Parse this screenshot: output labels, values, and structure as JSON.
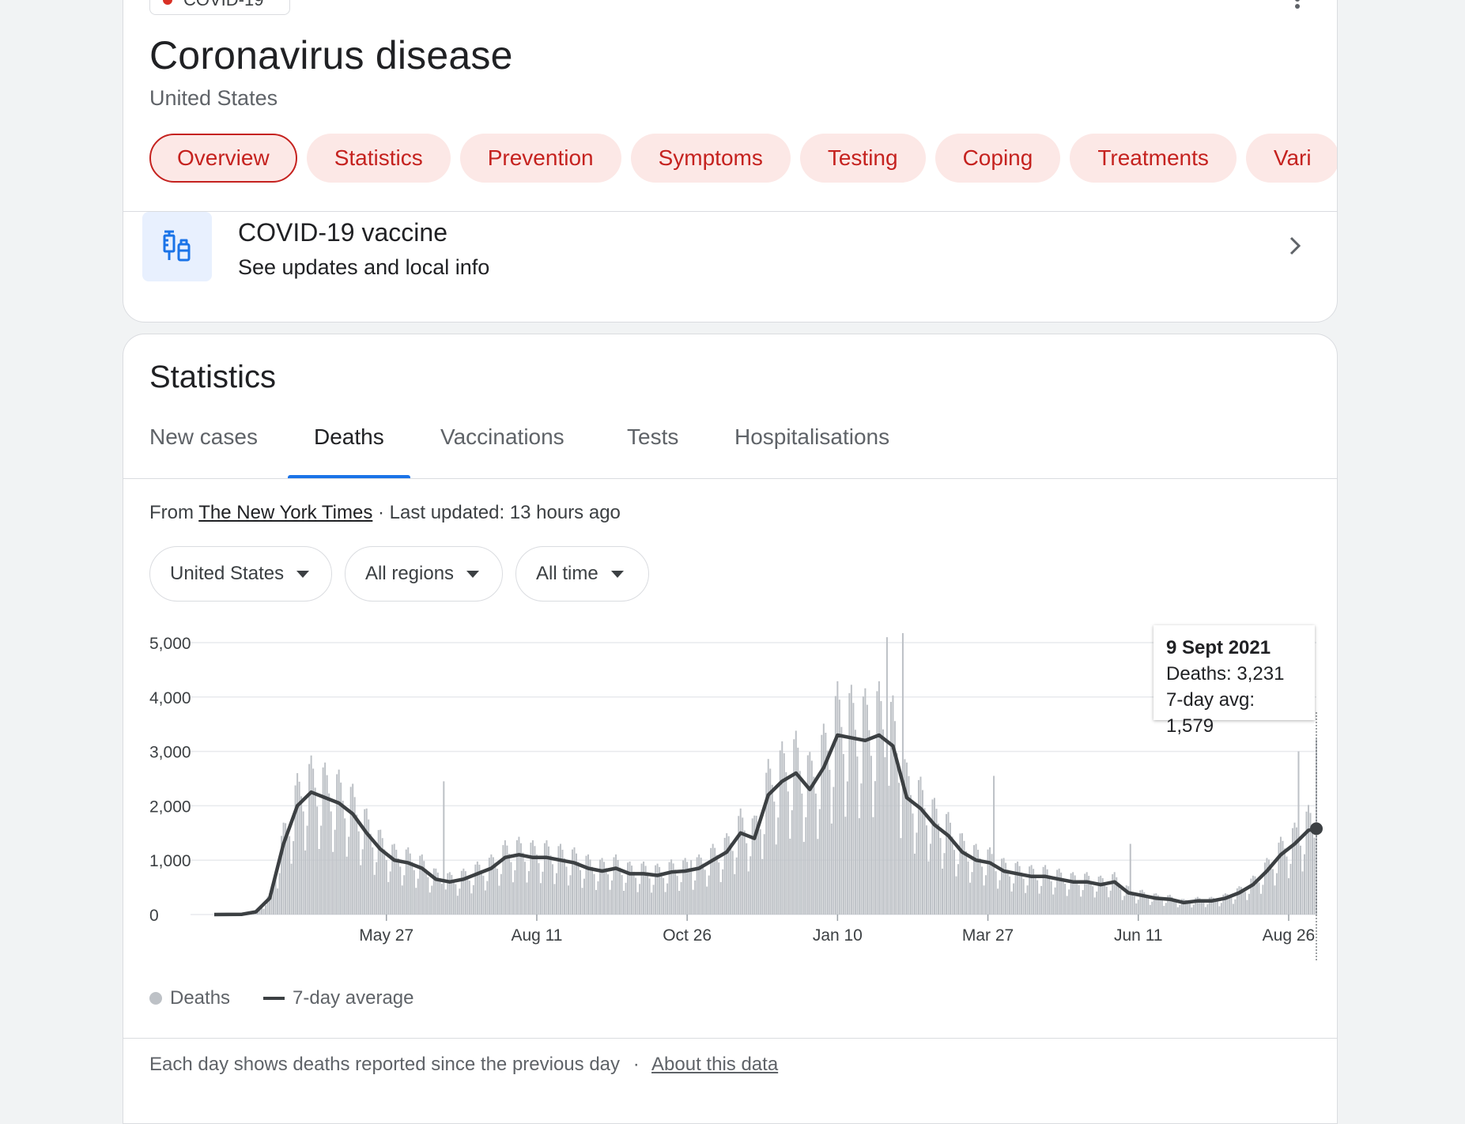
{
  "topic_chip": {
    "label": "COVID-19",
    "icon": "virus-icon"
  },
  "header": {
    "title": "Coronavirus disease",
    "subtitle": "United States"
  },
  "topic_tabs": [
    {
      "label": "Overview",
      "active": true
    },
    {
      "label": "Statistics"
    },
    {
      "label": "Prevention"
    },
    {
      "label": "Symptoms"
    },
    {
      "label": "Testing"
    },
    {
      "label": "Coping"
    },
    {
      "label": "Treatments"
    },
    {
      "label": "Vari"
    }
  ],
  "vaccine": {
    "title": "COVID-19 vaccine",
    "subtitle": "See updates and local info",
    "icon": "syringe-vial-icon"
  },
  "statistics": {
    "title": "Statistics",
    "tabs": [
      {
        "label": "New cases"
      },
      {
        "label": "Deaths",
        "active": true
      },
      {
        "label": "Vaccinations"
      },
      {
        "label": "Tests"
      },
      {
        "label": "Hospitalisations"
      }
    ],
    "source_prefix": "From",
    "source_link": "The New York Times",
    "source_suffix": "· Last updated: 13 hours ago",
    "filters": {
      "country": "United States",
      "regions": "All regions",
      "time": "All time"
    },
    "tooltip": {
      "date": "9 Sept 2021",
      "deaths": "Deaths: 3,231",
      "avg": "7-day avg: 1,579"
    },
    "legend": {
      "bars": "Deaths",
      "line": "7-day average"
    },
    "footer_text": "Each day shows deaths reported since the previous day",
    "footer_sep": "·",
    "footer_link": "About this data"
  },
  "colors": {
    "accent_red": "#c5221f",
    "pill_bg": "#fce8e6",
    "tab_blue": "#1a73e8",
    "bar_grey": "#bdc1c6",
    "line_dark": "#3c4043"
  },
  "chart_data": {
    "type": "bar",
    "title": "",
    "x_range": [
      "2020-03-01",
      "2021-09-09"
    ],
    "y_range": [
      0,
      5000
    ],
    "y_ticks": [
      0,
      1000,
      2000,
      3000,
      4000,
      5000
    ],
    "y_tick_labels": [
      "0",
      "1,000",
      "2,000",
      "3,000",
      "4,000",
      "5,000"
    ],
    "x_tick_dates": [
      "2020-05-27",
      "2020-08-11",
      "2020-10-26",
      "2021-01-10",
      "2021-03-27",
      "2021-06-11",
      "2021-08-26"
    ],
    "x_tick_labels": [
      "May 27",
      "Aug 11",
      "Oct 26",
      "Jan 10",
      "Mar 27",
      "Jun 11",
      "Aug 26"
    ],
    "grid": true,
    "series": [
      {
        "name": "7-day average",
        "kind": "line",
        "points": [
          [
            "2020-03-01",
            0
          ],
          [
            "2020-03-15",
            5
          ],
          [
            "2020-03-22",
            50
          ],
          [
            "2020-03-29",
            300
          ],
          [
            "2020-04-05",
            1300
          ],
          [
            "2020-04-12",
            2000
          ],
          [
            "2020-04-19",
            2250
          ],
          [
            "2020-04-26",
            2150
          ],
          [
            "2020-05-03",
            2050
          ],
          [
            "2020-05-10",
            1850
          ],
          [
            "2020-05-17",
            1500
          ],
          [
            "2020-05-24",
            1200
          ],
          [
            "2020-05-31",
            1000
          ],
          [
            "2020-06-07",
            950
          ],
          [
            "2020-06-14",
            850
          ],
          [
            "2020-06-21",
            650
          ],
          [
            "2020-06-28",
            600
          ],
          [
            "2020-07-05",
            650
          ],
          [
            "2020-07-12",
            750
          ],
          [
            "2020-07-19",
            850
          ],
          [
            "2020-07-26",
            1050
          ],
          [
            "2020-08-02",
            1100
          ],
          [
            "2020-08-09",
            1050
          ],
          [
            "2020-08-16",
            1050
          ],
          [
            "2020-08-23",
            1000
          ],
          [
            "2020-08-30",
            950
          ],
          [
            "2020-09-06",
            850
          ],
          [
            "2020-09-13",
            800
          ],
          [
            "2020-09-20",
            850
          ],
          [
            "2020-09-27",
            750
          ],
          [
            "2020-10-04",
            750
          ],
          [
            "2020-10-11",
            720
          ],
          [
            "2020-10-18",
            780
          ],
          [
            "2020-10-25",
            800
          ],
          [
            "2020-11-01",
            850
          ],
          [
            "2020-11-08",
            1000
          ],
          [
            "2020-11-15",
            1150
          ],
          [
            "2020-11-22",
            1500
          ],
          [
            "2020-11-29",
            1400
          ],
          [
            "2020-12-06",
            2200
          ],
          [
            "2020-12-13",
            2450
          ],
          [
            "2020-12-20",
            2600
          ],
          [
            "2020-12-27",
            2300
          ],
          [
            "2021-01-03",
            2700
          ],
          [
            "2021-01-10",
            3300
          ],
          [
            "2021-01-17",
            3250
          ],
          [
            "2021-01-24",
            3200
          ],
          [
            "2021-01-31",
            3300
          ],
          [
            "2021-02-07",
            3100
          ],
          [
            "2021-02-14",
            2150
          ],
          [
            "2021-02-21",
            1950
          ],
          [
            "2021-02-28",
            1650
          ],
          [
            "2021-03-07",
            1450
          ],
          [
            "2021-03-14",
            1150
          ],
          [
            "2021-03-21",
            1000
          ],
          [
            "2021-03-28",
            950
          ],
          [
            "2021-04-04",
            800
          ],
          [
            "2021-04-11",
            750
          ],
          [
            "2021-04-18",
            700
          ],
          [
            "2021-04-25",
            700
          ],
          [
            "2021-05-02",
            650
          ],
          [
            "2021-05-09",
            600
          ],
          [
            "2021-05-16",
            600
          ],
          [
            "2021-05-23",
            550
          ],
          [
            "2021-05-30",
            600
          ],
          [
            "2021-06-06",
            400
          ],
          [
            "2021-06-13",
            350
          ],
          [
            "2021-06-20",
            300
          ],
          [
            "2021-06-27",
            280
          ],
          [
            "2021-07-04",
            220
          ],
          [
            "2021-07-11",
            250
          ],
          [
            "2021-07-18",
            250
          ],
          [
            "2021-07-25",
            300
          ],
          [
            "2021-08-01",
            400
          ],
          [
            "2021-08-08",
            550
          ],
          [
            "2021-08-15",
            800
          ],
          [
            "2021-08-22",
            1100
          ],
          [
            "2021-08-29",
            1300
          ],
          [
            "2021-09-05",
            1550
          ],
          [
            "2021-09-09",
            1579
          ]
        ]
      },
      {
        "name": "Deaths",
        "kind": "bar",
        "note": "daily bars fluctuate around the 7-day average; notable spikes listed",
        "spikes": [
          [
            "2020-06-25",
            2450
          ],
          [
            "2020-10-28",
            1000
          ],
          [
            "2021-02-04",
            5100
          ],
          [
            "2021-02-12",
            5450
          ],
          [
            "2021-03-30",
            2550
          ],
          [
            "2021-06-07",
            1300
          ],
          [
            "2021-08-31",
            3000
          ],
          [
            "2021-09-09",
            3231
          ]
        ]
      }
    ]
  }
}
